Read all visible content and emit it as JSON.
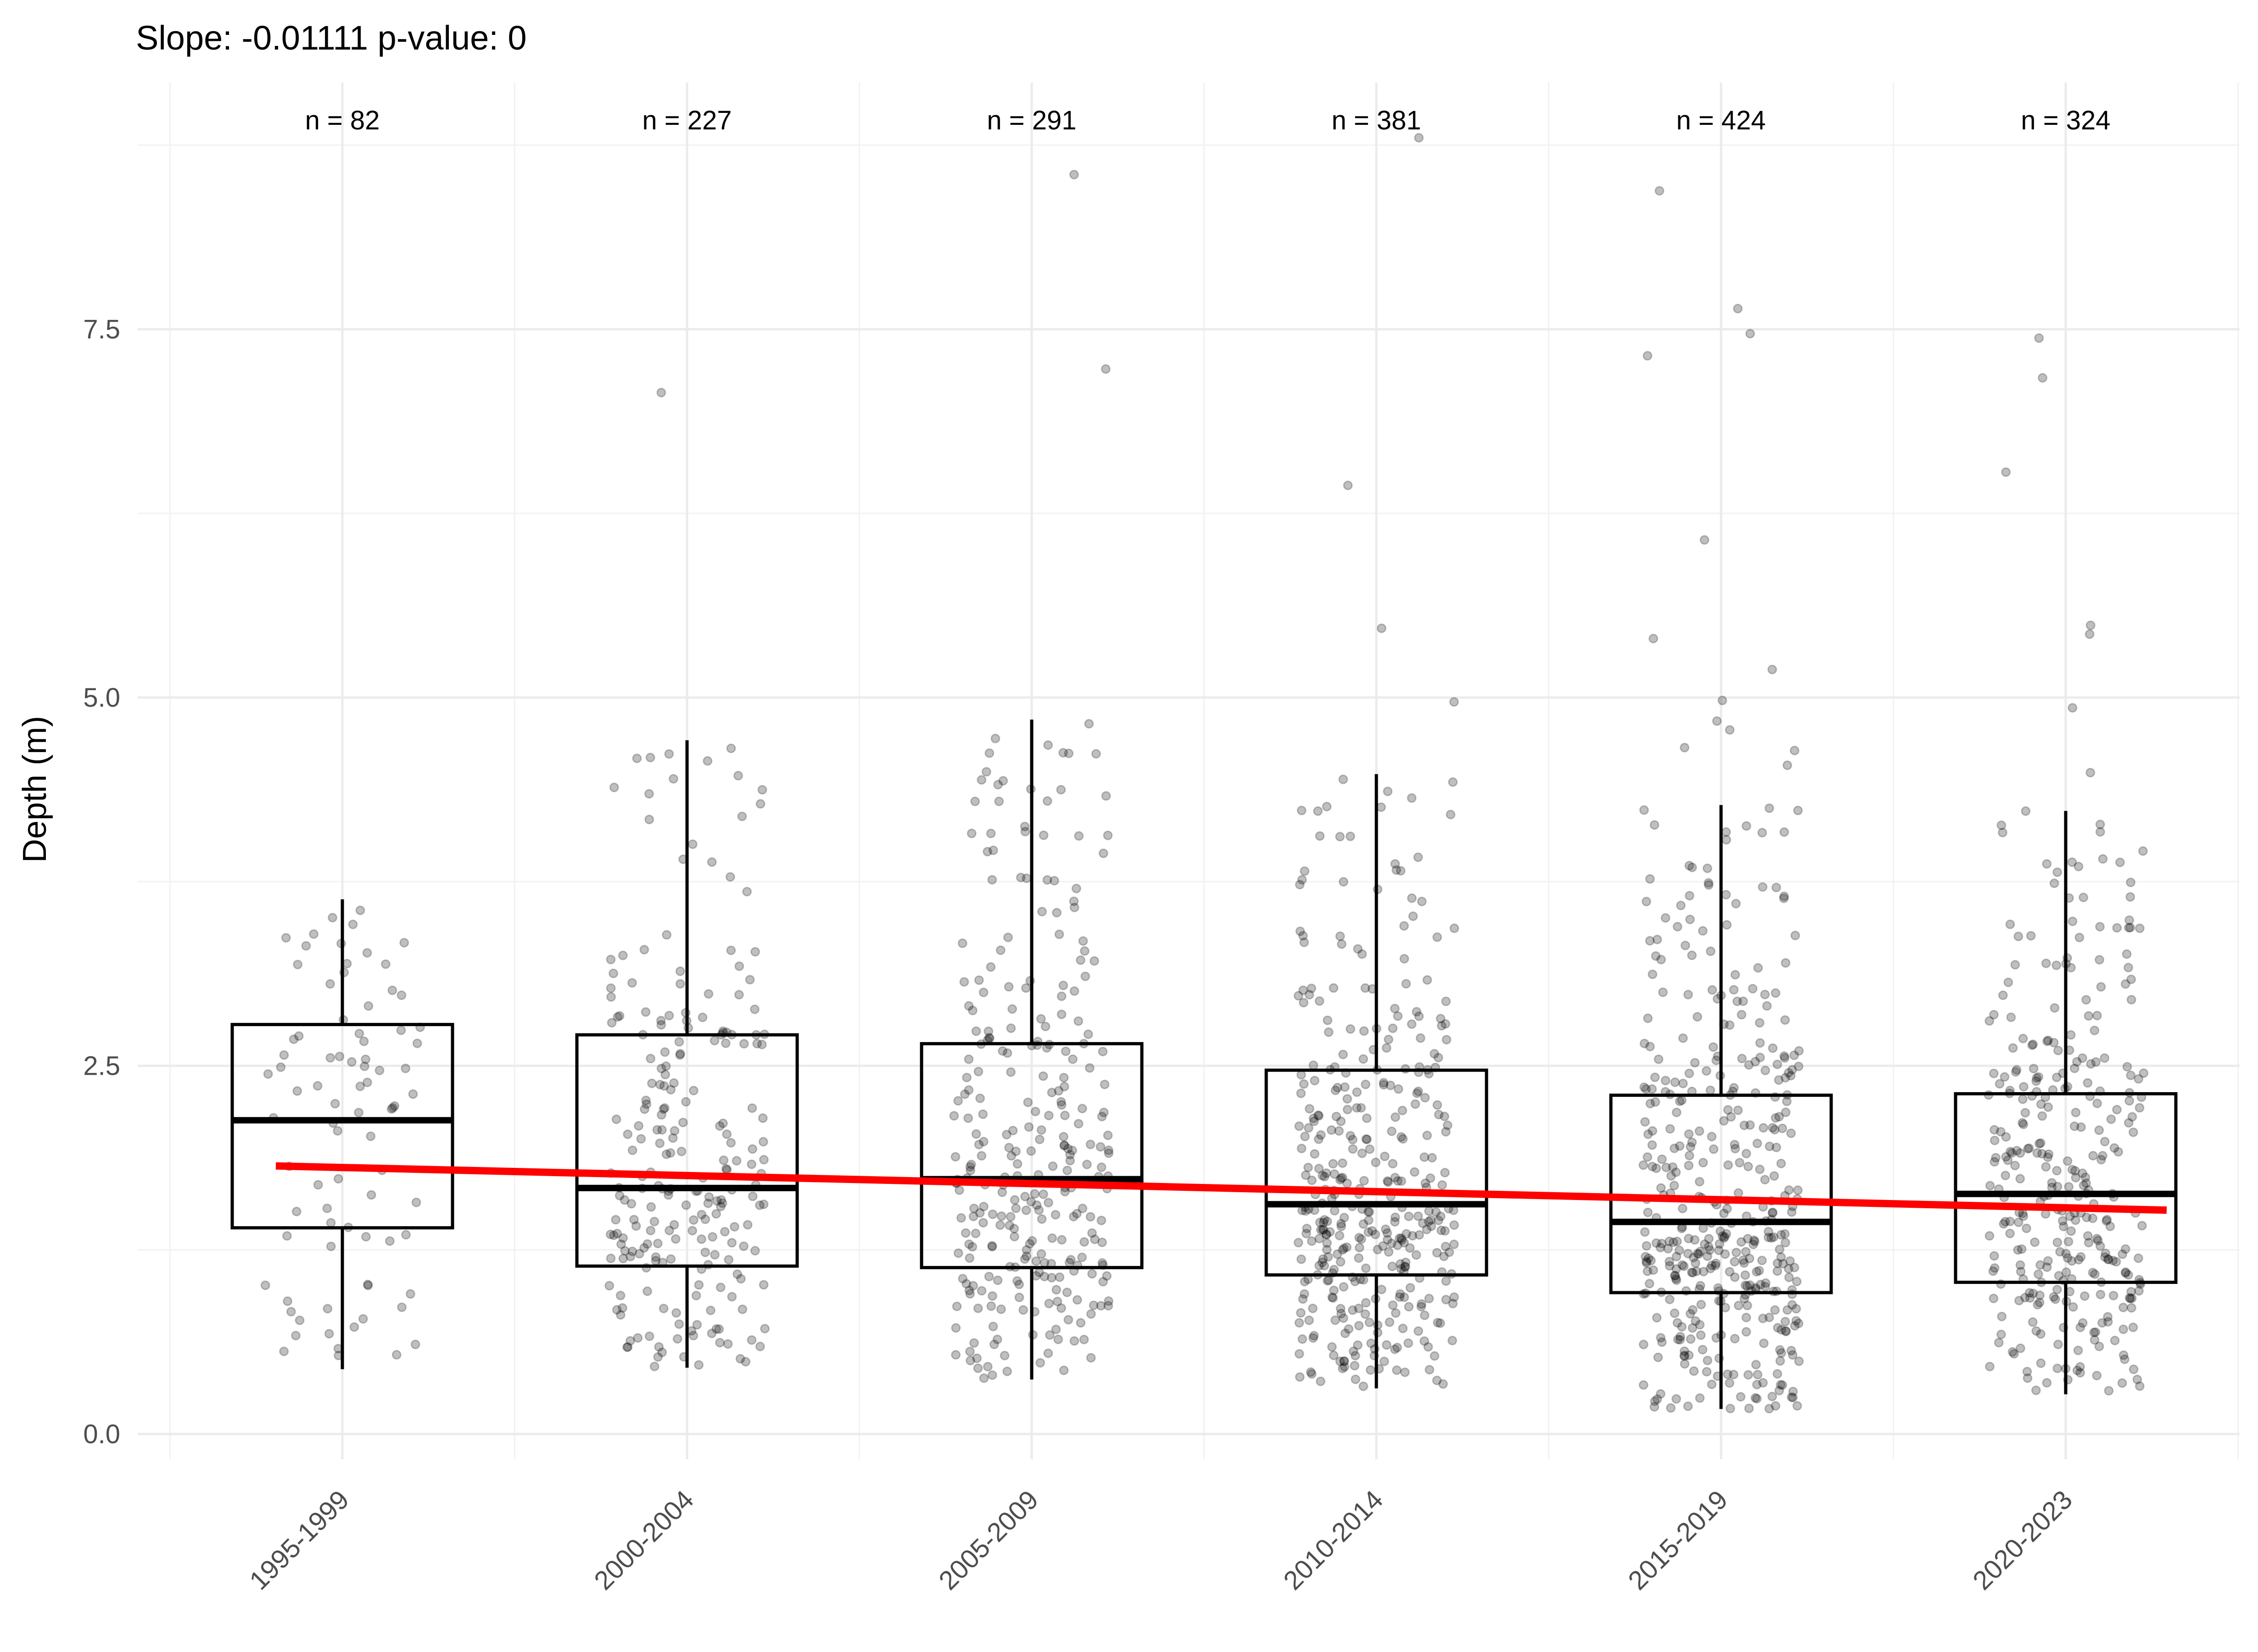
{
  "chart_data": {
    "type": "box",
    "title": "Slope: -0.01111 p-value: 0",
    "xlabel": "",
    "ylabel": "Depth (m)",
    "ylim": [
      -0.15,
      9.4
    ],
    "yticks": [
      0.0,
      2.5,
      5.0,
      7.5
    ],
    "ytick_labels": [
      "0.0",
      "2.5",
      "5.0",
      "7.5"
    ],
    "categories": [
      "1995-1999",
      "2000-2004",
      "2005-2009",
      "2010-2014",
      "2015-2019",
      "2020-2023"
    ],
    "counts": [
      82,
      227,
      291,
      381,
      424,
      324
    ],
    "count_labels": [
      "n = 82",
      "n = 227",
      "n = 291",
      "n = 381",
      "n = 424",
      "n = 324"
    ],
    "boxes": [
      {
        "category": "1995-1999",
        "q1": 1.4,
        "median": 2.13,
        "q3": 2.78,
        "whisker_low": 0.44,
        "whisker_high": 3.63,
        "outliers": []
      },
      {
        "category": "2000-2004",
        "q1": 1.14,
        "median": 1.67,
        "q3": 2.71,
        "whisker_low": 0.45,
        "whisker_high": 4.71,
        "outliers": [
          7.07
        ]
      },
      {
        "category": "2005-2009",
        "q1": 1.13,
        "median": 1.73,
        "q3": 2.65,
        "whisker_low": 0.37,
        "whisker_high": 4.85,
        "outliers": [
          7.23,
          8.55
        ]
      },
      {
        "category": "2010-2014",
        "q1": 1.08,
        "median": 1.56,
        "q3": 2.47,
        "whisker_low": 0.31,
        "whisker_high": 4.48,
        "outliers": [
          4.97,
          5.47,
          6.44,
          8.8
        ]
      },
      {
        "category": "2015-2019",
        "q1": 0.96,
        "median": 1.44,
        "q3": 2.3,
        "whisker_low": 0.17,
        "whisker_high": 4.27,
        "outliers": [
          4.54,
          4.64,
          4.66,
          4.78,
          4.84,
          4.98,
          5.19,
          5.4,
          6.07,
          7.32,
          7.47,
          7.64,
          8.44
        ]
      },
      {
        "category": "2020-2023",
        "q1": 1.03,
        "median": 1.63,
        "q3": 2.31,
        "whisker_low": 0.27,
        "whisker_high": 4.23,
        "outliers": [
          4.49,
          4.93,
          5.43,
          5.49,
          6.53,
          7.17,
          7.44
        ]
      }
    ],
    "trend_line": {
      "x_start": "1995-1999",
      "y_start": 1.82,
      "x_end": "2020-2023",
      "y_end": 1.52,
      "slope": -0.01111,
      "color": "#ff0000"
    },
    "jitter_points": {
      "color": "#000000",
      "opacity": 0.25
    },
    "grid": true,
    "legend": "none",
    "colors": {
      "box": "#000000",
      "trend": "#ff0000",
      "points": "#7f7f7f",
      "grid": "#ebebeb"
    }
  }
}
